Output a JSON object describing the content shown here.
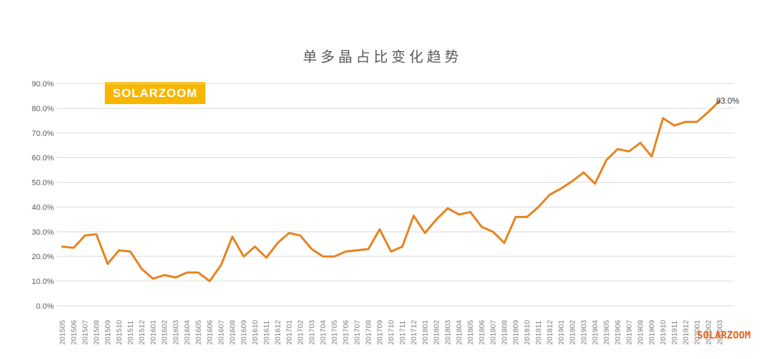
{
  "title": "单多晶占比变化趋势",
  "badge": {
    "label": "SOLARZOOM"
  },
  "watermark": "SOLARZOOM",
  "colors": {
    "line": "#E8821E",
    "grid": "#D9D9D9",
    "y_axis_text": "#595959",
    "x_axis_text": "#7F7F7F",
    "title_text": "#595959",
    "end_label_text": "#3A3A3A",
    "badge_bg": "#F7B600",
    "badge_text": "#FFFFFF",
    "watermark_text": "#E8631C"
  },
  "chart_data": {
    "type": "line",
    "title": "单多晶占比变化趋势",
    "categories": [
      "201505",
      "201506",
      "201507",
      "201508",
      "201509",
      "201510",
      "201511",
      "201512",
      "201601",
      "201602",
      "201603",
      "201604",
      "201605",
      "201606",
      "201607",
      "201608",
      "201609",
      "201610",
      "201611",
      "201612",
      "201701",
      "201702",
      "201703",
      "201704",
      "201705",
      "201706",
      "201707",
      "201708",
      "201709",
      "201710",
      "201711",
      "201712",
      "201801",
      "201802",
      "201803",
      "201804",
      "201805",
      "201806",
      "201807",
      "201808",
      "201809",
      "201810",
      "201811",
      "201812",
      "201901",
      "201902",
      "201903",
      "201904",
      "201905",
      "201906",
      "201907",
      "201908",
      "201909",
      "201910",
      "201911",
      "201912",
      "202001",
      "202002",
      "202003"
    ],
    "values": [
      24.0,
      23.5,
      28.5,
      29.0,
      17.0,
      22.5,
      22.0,
      15.0,
      11.0,
      12.5,
      11.5,
      13.5,
      13.5,
      10.0,
      16.5,
      28.0,
      20.0,
      24.0,
      19.5,
      25.5,
      29.5,
      28.5,
      23.0,
      20.0,
      20.0,
      22.0,
      22.5,
      23.0,
      31.0,
      22.0,
      24.0,
      36.5,
      29.5,
      35.0,
      39.5,
      37.0,
      38.0,
      32.0,
      30.0,
      25.5,
      36.0,
      36.0,
      40.0,
      45.0,
      47.5,
      50.5,
      54.0,
      49.5,
      59.0,
      63.5,
      62.5,
      66.0,
      60.5,
      76.0,
      73.0,
      74.5,
      74.5,
      78.5,
      83.0
    ],
    "y_tick_labels": [
      "0.0%",
      "10.0%",
      "20.0%",
      "30.0%",
      "40.0%",
      "50.0%",
      "60.0%",
      "70.0%",
      "80.0%",
      "90.0%"
    ],
    "ylim": [
      0,
      90
    ],
    "unit": "%",
    "grid": "horizontal-only",
    "legend": "none",
    "x_label_rotation": -90,
    "end_point_label": "83.0%"
  }
}
